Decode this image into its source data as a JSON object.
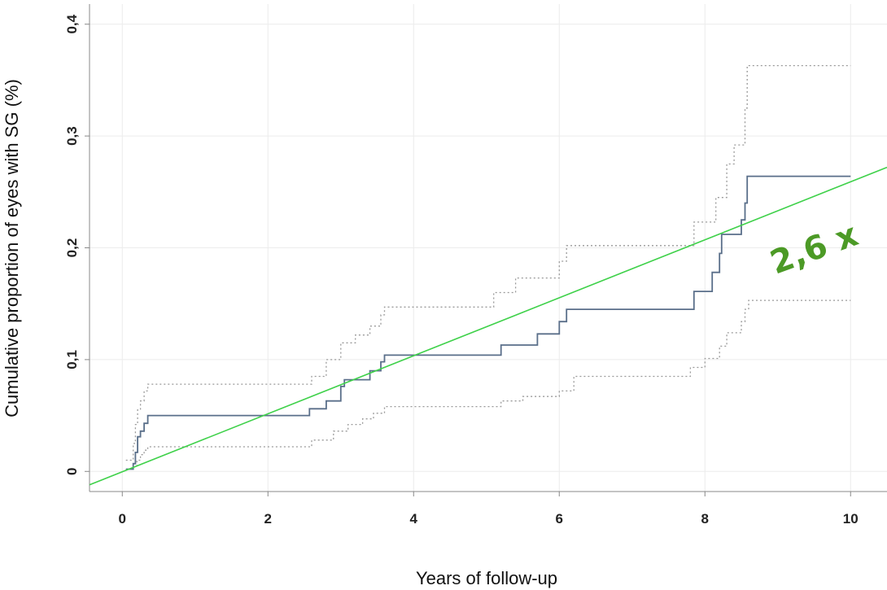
{
  "chart_data": {
    "type": "line",
    "title": "",
    "xlabel": "Years of follow-up",
    "ylabel": "Cumulative proportion of eyes with SG (%)",
    "xlim": [
      -0.45,
      10.5
    ],
    "ylim": [
      -0.018,
      0.418
    ],
    "x_ticks": [
      0,
      2,
      4,
      6,
      8,
      10
    ],
    "x_tick_labels": [
      "0",
      "2",
      "4",
      "6",
      "8",
      "10"
    ],
    "y_ticks": [
      0,
      0.1,
      0.2,
      0.3,
      0.4
    ],
    "y_tick_labels": [
      "0",
      "0,1",
      "0,2",
      "0,3",
      "0,4"
    ],
    "grid": true,
    "colors": {
      "estimate": "#5a6f8a",
      "ci": "#9a9a9a",
      "trend": "#3fd14a",
      "annotation": "#4c9a26",
      "grid": "#ececec",
      "axis": "#888888"
    },
    "series": [
      {
        "style": "step-solid",
        "points": [
          [
            0.05,
            0.002
          ],
          [
            0.15,
            0.007
          ],
          [
            0.18,
            0.017
          ],
          [
            0.21,
            0.031
          ],
          [
            0.25,
            0.036
          ],
          [
            0.3,
            0.043
          ],
          [
            0.35,
            0.05
          ],
          [
            2.57,
            0.056
          ],
          [
            2.8,
            0.063
          ],
          [
            3.0,
            0.076
          ],
          [
            3.05,
            0.082
          ],
          [
            3.4,
            0.09
          ],
          [
            3.55,
            0.098
          ],
          [
            3.6,
            0.104
          ],
          [
            5.2,
            0.113
          ],
          [
            5.7,
            0.123
          ],
          [
            6.0,
            0.134
          ],
          [
            6.1,
            0.145
          ],
          [
            7.85,
            0.161
          ],
          [
            8.1,
            0.178
          ],
          [
            8.2,
            0.195
          ],
          [
            8.23,
            0.212
          ],
          [
            8.5,
            0.225
          ],
          [
            8.55,
            0.24
          ],
          [
            8.58,
            0.264
          ],
          [
            10.0,
            0.264
          ]
        ]
      },
      {
        "style": "step-dotted",
        "points": [
          [
            0.05,
            0.01
          ],
          [
            0.15,
            0.025
          ],
          [
            0.18,
            0.042
          ],
          [
            0.21,
            0.055
          ],
          [
            0.25,
            0.063
          ],
          [
            0.3,
            0.072
          ],
          [
            0.35,
            0.078
          ],
          [
            2.6,
            0.085
          ],
          [
            2.8,
            0.1
          ],
          [
            3.0,
            0.115
          ],
          [
            3.2,
            0.122
          ],
          [
            3.4,
            0.13
          ],
          [
            3.55,
            0.14
          ],
          [
            3.6,
            0.147
          ],
          [
            5.1,
            0.16
          ],
          [
            5.4,
            0.173
          ],
          [
            6.0,
            0.188
          ],
          [
            6.1,
            0.202
          ],
          [
            7.85,
            0.223
          ],
          [
            8.15,
            0.245
          ],
          [
            8.3,
            0.275
          ],
          [
            8.4,
            0.292
          ],
          [
            8.55,
            0.325
          ],
          [
            8.58,
            0.363
          ],
          [
            10.0,
            0.363
          ]
        ]
      },
      {
        "style": "step-dotted",
        "points": [
          [
            0.15,
            0.004
          ],
          [
            0.2,
            0.01
          ],
          [
            0.25,
            0.015
          ],
          [
            0.3,
            0.019
          ],
          [
            0.35,
            0.022
          ],
          [
            2.6,
            0.028
          ],
          [
            2.9,
            0.036
          ],
          [
            3.1,
            0.042
          ],
          [
            3.3,
            0.047
          ],
          [
            3.45,
            0.052
          ],
          [
            3.6,
            0.058
          ],
          [
            5.2,
            0.063
          ],
          [
            5.5,
            0.067
          ],
          [
            6.0,
            0.072
          ],
          [
            6.2,
            0.085
          ],
          [
            7.8,
            0.093
          ],
          [
            8.0,
            0.101
          ],
          [
            8.2,
            0.112
          ],
          [
            8.3,
            0.124
          ],
          [
            8.5,
            0.134
          ],
          [
            8.55,
            0.145
          ],
          [
            8.6,
            0.153
          ],
          [
            10.0,
            0.153
          ]
        ]
      },
      {
        "style": "trend-line",
        "points": [
          [
            -0.45,
            -0.012
          ],
          [
            10.5,
            0.272
          ]
        ]
      }
    ],
    "annotation": {
      "text": "2,6 x",
      "x": 9.55,
      "y": 0.19,
      "rotation": -20
    }
  }
}
